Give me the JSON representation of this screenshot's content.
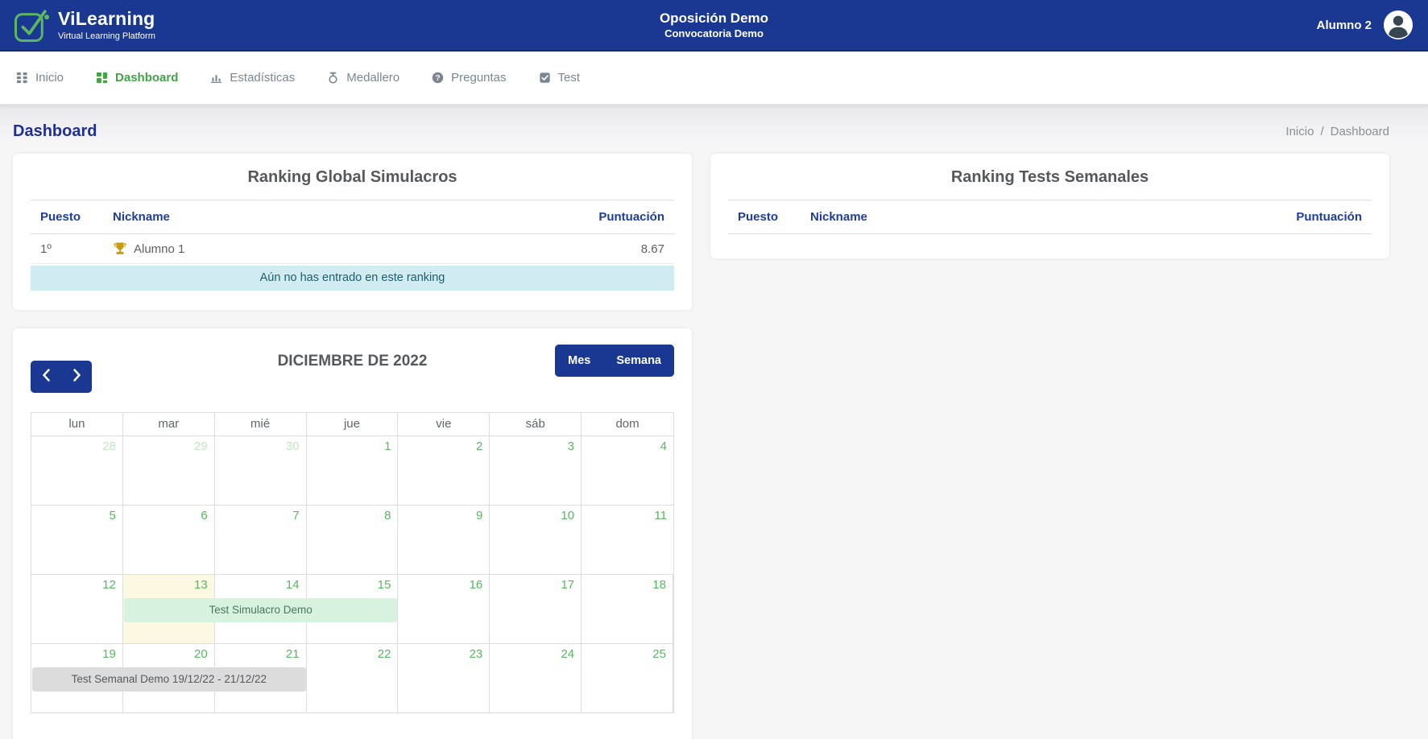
{
  "header": {
    "brand": {
      "name": "ViLearning",
      "tagline": "Virtual Learning Platform"
    },
    "center": {
      "title": "Oposición Demo",
      "subtitle": "Convocatoria Demo"
    },
    "user": {
      "name": "Alumno 2"
    }
  },
  "nav": {
    "items": [
      {
        "label": "Inicio",
        "icon": "grid-icon",
        "active": false
      },
      {
        "label": "Dashboard",
        "icon": "dashboard-icon",
        "active": true
      },
      {
        "label": "Estadísticas",
        "icon": "bar-chart-icon",
        "active": false
      },
      {
        "label": "Medallero",
        "icon": "medal-icon",
        "active": false
      },
      {
        "label": "Preguntas",
        "icon": "question-icon",
        "active": false
      },
      {
        "label": "Test",
        "icon": "check-square-icon",
        "active": false
      }
    ]
  },
  "page": {
    "title": "Dashboard",
    "breadcrumb": [
      "Inicio",
      "Dashboard"
    ],
    "breadcrumb_separator": "/"
  },
  "ranking_global": {
    "title": "Ranking Global Simulacros",
    "columns": [
      "Puesto",
      "Nickname",
      "Puntuación"
    ],
    "rows": [
      {
        "puesto": "1º",
        "icon": "trophy-icon",
        "nickname": "Alumno 1",
        "puntuacion": "8.67"
      }
    ],
    "notice": "Aún no has entrado en este ranking"
  },
  "ranking_semanal": {
    "title": "Ranking Tests Semanales",
    "columns": [
      "Puesto",
      "Nickname",
      "Puntuación"
    ],
    "rows": []
  },
  "calendar": {
    "title": "DICIEMBRE DE 2022",
    "controls": {
      "prev": "previous",
      "next": "next",
      "month_label": "Mes",
      "week_label": "Semana"
    },
    "day_headers": [
      "lun",
      "mar",
      "mié",
      "jue",
      "vie",
      "sáb",
      "dom"
    ],
    "weeks": [
      [
        {
          "n": "28",
          "other": true
        },
        {
          "n": "29",
          "other": true
        },
        {
          "n": "30",
          "other": true
        },
        {
          "n": "1"
        },
        {
          "n": "2"
        },
        {
          "n": "3"
        },
        {
          "n": "4"
        }
      ],
      [
        {
          "n": "5"
        },
        {
          "n": "6"
        },
        {
          "n": "7"
        },
        {
          "n": "8"
        },
        {
          "n": "9"
        },
        {
          "n": "10"
        },
        {
          "n": "11"
        }
      ],
      [
        {
          "n": "12"
        },
        {
          "n": "13",
          "today": true
        },
        {
          "n": "14"
        },
        {
          "n": "15"
        },
        {
          "n": "16"
        },
        {
          "n": "17"
        },
        {
          "n": "18"
        }
      ],
      [
        {
          "n": "19"
        },
        {
          "n": "20"
        },
        {
          "n": "21"
        },
        {
          "n": "22"
        },
        {
          "n": "23"
        },
        {
          "n": "24"
        },
        {
          "n": "25"
        }
      ]
    ],
    "events": [
      {
        "label": "Test Simulacro Demo",
        "week": 2,
        "start_col": 1,
        "span": 3,
        "variant": "mint"
      },
      {
        "label": "Test Semanal Demo 19/12/22 - 21/12/22",
        "week": 3,
        "start_col": 0,
        "span": 3,
        "variant": "gray"
      }
    ],
    "today_date": "13"
  },
  "colors": {
    "header_blue": "#1a3791",
    "nav_active_green": "#46a24a",
    "date_green": "#56b85f",
    "other_month_green": "#c2e6c3",
    "today_bg": "#fcf8e1",
    "notice_bg": "#d1ecf1",
    "notice_text": "#1d5d6e",
    "event_mint_bg": "#d8f2e0",
    "event_mint_text": "#48795b",
    "event_gray_bg": "#dcdcdc",
    "column_header_blue": "#1e3d9c",
    "trophy_gold": "#c79a12"
  }
}
